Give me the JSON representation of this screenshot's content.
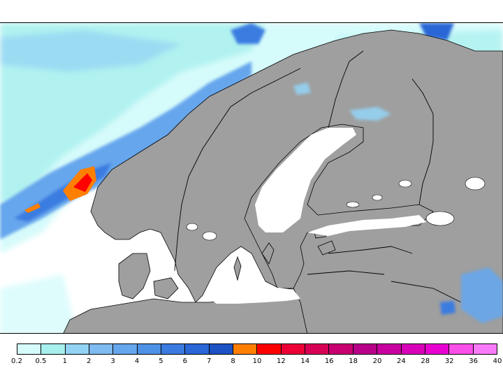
{
  "legend": {
    "colors": [
      "#d6fbfb",
      "#a7f0ee",
      "#93d3f3",
      "#7fbaf0",
      "#66a6ec",
      "#4d92e6",
      "#3b7be1",
      "#2a66d6",
      "#1d52c4",
      "#ff7f00",
      "#ff0000",
      "#ec0036",
      "#d80054",
      "#c80070",
      "#b80088",
      "#c800a0",
      "#d800b8",
      "#e800d0",
      "#f850e8",
      "#f87af8"
    ],
    "labels": [
      "0.2",
      "0.5",
      "1",
      "2",
      "3",
      "4",
      "5",
      "6",
      "7",
      "8",
      "10",
      "12",
      "14",
      "16",
      "18",
      "20",
      "24",
      "28",
      "32",
      "36",
      "40"
    ]
  },
  "map": {
    "land_color": "#9f9f9f",
    "sea_color": "#ffffff",
    "border_color": "#000000"
  }
}
